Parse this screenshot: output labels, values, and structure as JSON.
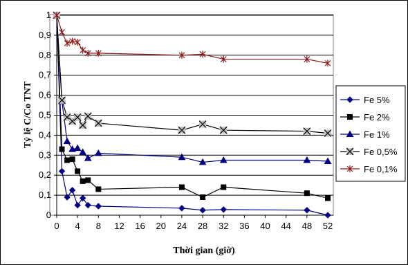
{
  "chart_data": {
    "type": "line",
    "title": "",
    "xlabel": "Thời gian (giờ)",
    "ylabel": "Tỷ lệ C/Co TNT",
    "xlim": [
      0,
      52
    ],
    "ylim": [
      0,
      1
    ],
    "xticks": [
      "0",
      "4",
      "8",
      "12",
      "16",
      "20",
      "24",
      "28",
      "32",
      "36",
      "40",
      "44",
      "48",
      "52"
    ],
    "yticks": [
      "0",
      "0,1",
      "0,2",
      "0,3",
      "0,4",
      "0,5",
      "0,6",
      "0,7",
      "0,8",
      "0,9",
      "1"
    ],
    "grid": "horizontal",
    "legend_position": "right",
    "series": [
      {
        "name": "Fe 5%",
        "color": "#000080",
        "marker": "diamond",
        "x": [
          0,
          1,
          2,
          3,
          4,
          5,
          6,
          8,
          24,
          28,
          32,
          48,
          52
        ],
        "y": [
          1,
          0.22,
          0.09,
          0.125,
          0.05,
          0.085,
          0.05,
          0.045,
          0.035,
          0.025,
          0.028,
          0.025,
          0
        ]
      },
      {
        "name": "Fe 2%",
        "color": "#000000",
        "marker": "square",
        "x": [
          0,
          1,
          2,
          3,
          4,
          5,
          6,
          8,
          24,
          28,
          32,
          48,
          52
        ],
        "y": [
          1,
          0.33,
          0.275,
          0.28,
          0.22,
          0.17,
          0.175,
          0.13,
          0.14,
          0.09,
          0.14,
          0.11,
          0.085
        ]
      },
      {
        "name": "Fe 1%",
        "color": "#000080",
        "marker": "triangle",
        "x": [
          0,
          1,
          2,
          3,
          4,
          5,
          6,
          8,
          24,
          28,
          32,
          48,
          52
        ],
        "y": [
          1,
          0.57,
          0.37,
          0.33,
          0.335,
          0.315,
          0.285,
          0.31,
          0.29,
          0.265,
          0.275,
          0.275,
          0.27
        ]
      },
      {
        "name": "Fe 0,5%",
        "color": "#000000",
        "marker": "xbox",
        "x": [
          0,
          1,
          2,
          3,
          4,
          5,
          6,
          8,
          24,
          28,
          32,
          48,
          52
        ],
        "y": [
          1,
          0.575,
          0.49,
          0.47,
          0.49,
          0.45,
          0.495,
          0.46,
          0.425,
          0.455,
          0.425,
          0.42,
          0.41
        ]
      },
      {
        "name": "Fe 0,1%",
        "color": "#8B1A1A",
        "marker": "asterisk",
        "x": [
          0,
          1,
          2,
          3,
          4,
          5,
          6,
          8,
          24,
          28,
          32,
          48,
          52
        ],
        "y": [
          1,
          0.915,
          0.86,
          0.87,
          0.865,
          0.825,
          0.81,
          0.81,
          0.8,
          0.805,
          0.78,
          0.78,
          0.76
        ]
      }
    ]
  }
}
